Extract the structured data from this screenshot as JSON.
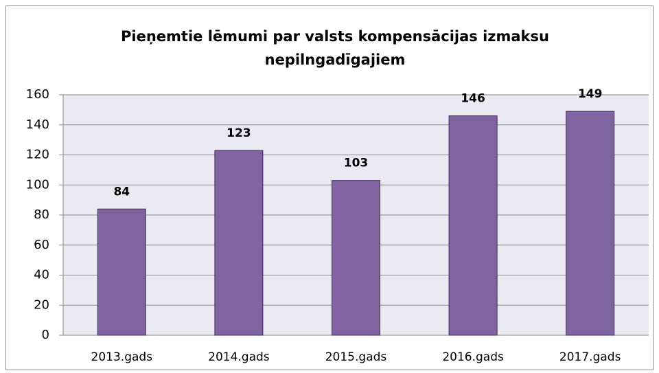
{
  "chart_data": {
    "type": "bar",
    "title": "Pieņemtie lēmumi par valsts kompensācijas izmaksu nepilngadīgajiem",
    "categories": [
      "2013.gads",
      "2014.gads",
      "2015.gads",
      "2016.gads",
      "2017.gads"
    ],
    "values": [
      84,
      123,
      103,
      146,
      149
    ],
    "color": "#8064a2",
    "ylim": [
      0,
      160
    ],
    "yticks": [
      0,
      20,
      40,
      60,
      80,
      100,
      120,
      140,
      160
    ],
    "grid": true
  }
}
